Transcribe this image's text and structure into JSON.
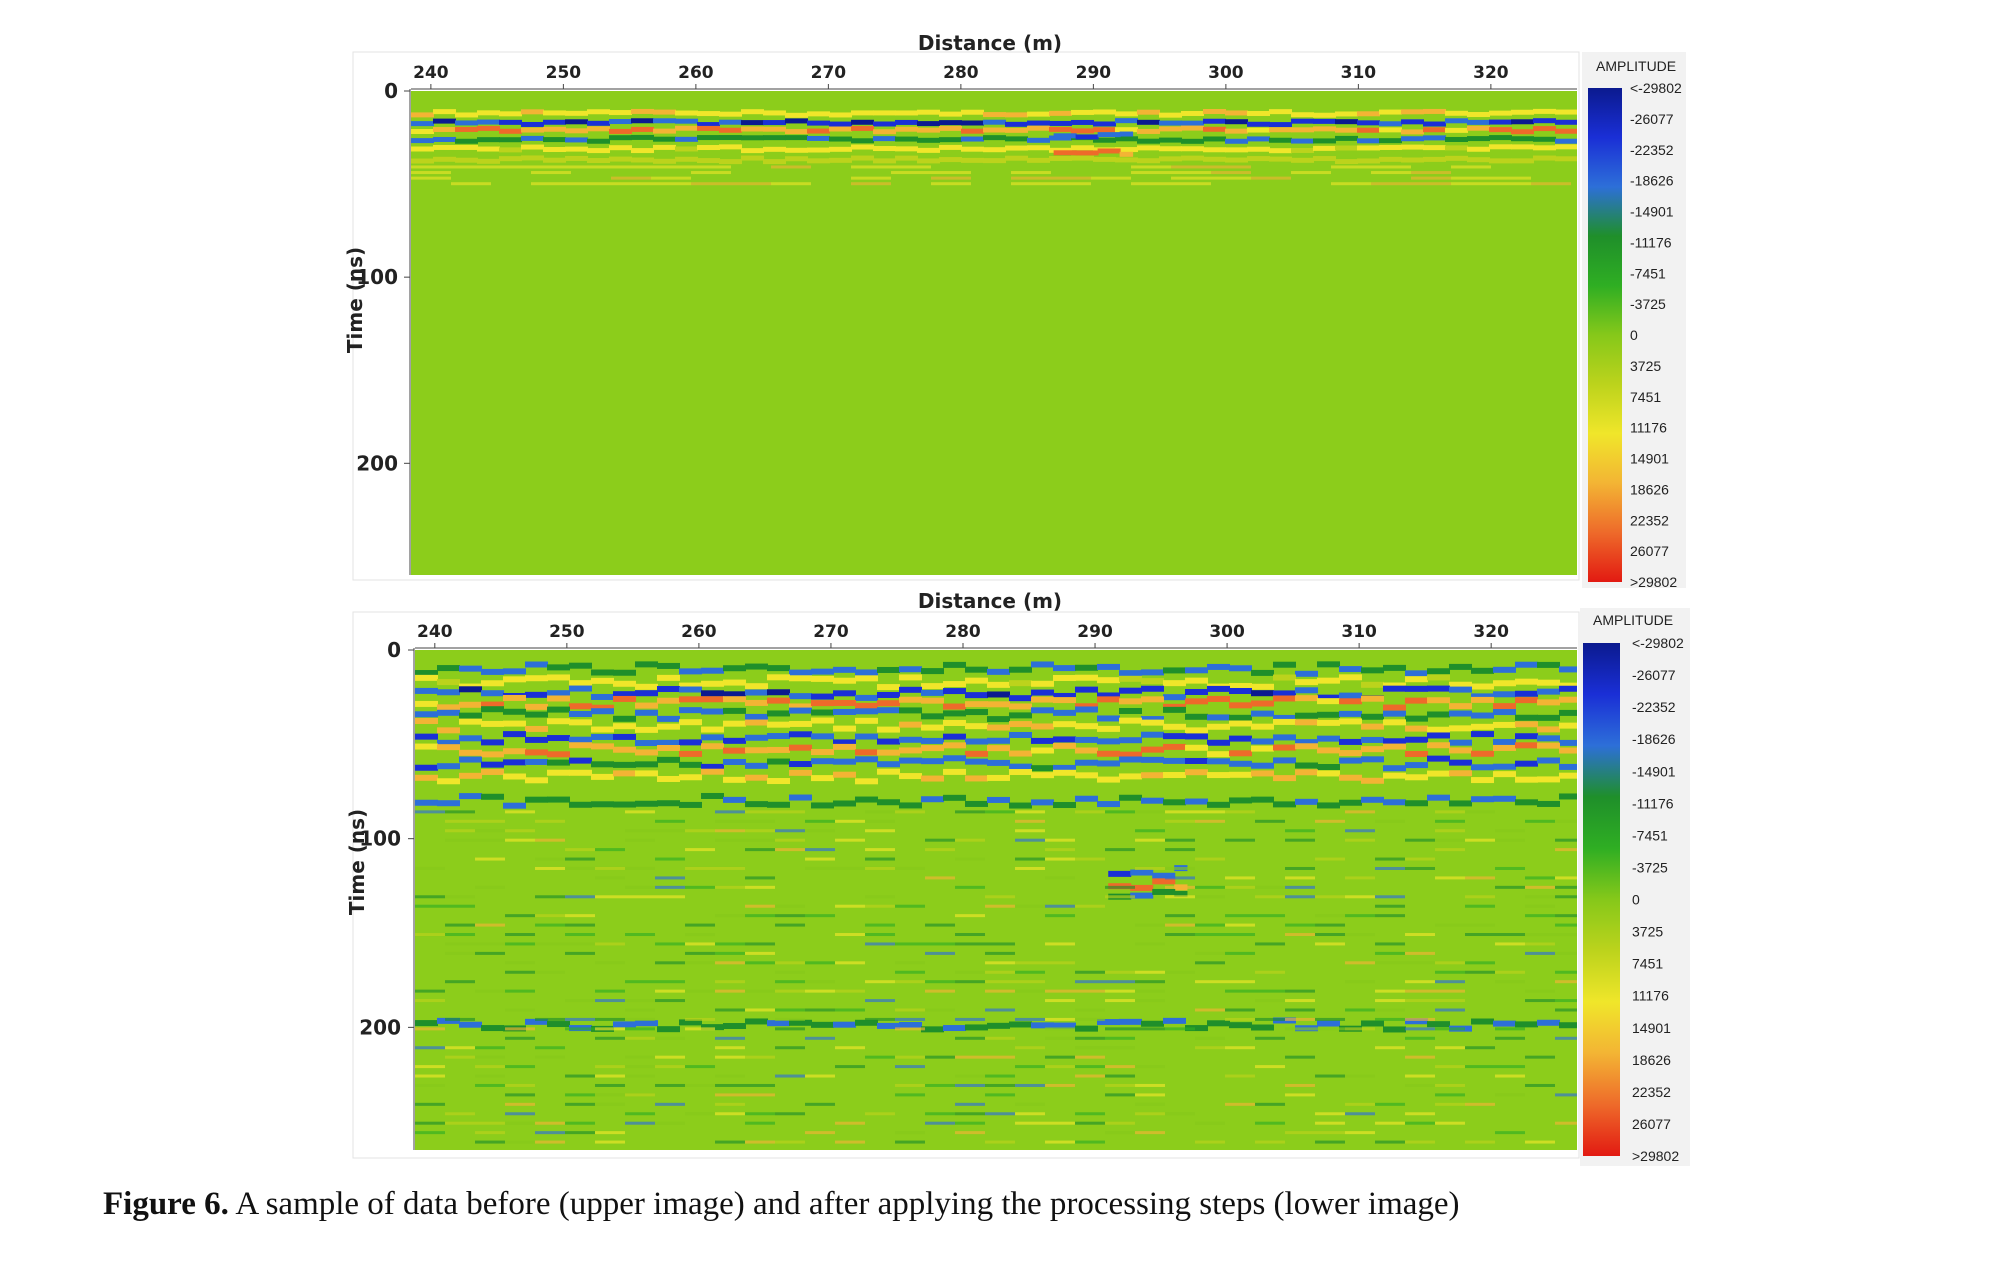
{
  "caption": {
    "label": "Figure 6.",
    "text": " A sample of data before (upper image) and after applying the processing steps (lower image)"
  },
  "colorbar_colors": [
    "#0b1a8f",
    "#1a2fd6",
    "#2d6fd8",
    "#1f8f2a",
    "#2fae23",
    "#86c81a",
    "#bcd31c",
    "#f0e62a",
    "#f3b434",
    "#ee6a2a",
    "#e21a12"
  ],
  "chart_data": [
    {
      "type": "heatmap",
      "name": "upper",
      "title": "",
      "xlabel": "Distance (m)",
      "ylabel": "Time (ns)",
      "x_ticks": [
        240,
        250,
        260,
        270,
        280,
        290,
        300,
        310,
        320
      ],
      "y_ticks": [
        0,
        100,
        200
      ],
      "xlim": [
        238.5,
        326.5
      ],
      "ylim": [
        260,
        0
      ],
      "colorbar": {
        "title": "AMPLITUDE",
        "labels": [
          "<-29802",
          "-26077",
          "-22352",
          "-18626",
          "-14901",
          "-11176",
          "-7451",
          "-3725",
          "0",
          "3725",
          "7451",
          "11176",
          "14901",
          "18626",
          "22352",
          "26077",
          ">29802"
        ]
      },
      "features": [
        {
          "t": 12,
          "amp": 0.55
        },
        {
          "t": 17,
          "amp": -1.0
        },
        {
          "t": 21,
          "amp": 0.85
        },
        {
          "t": 26,
          "amp": -0.6
        },
        {
          "t": 31,
          "amp": 0.5
        },
        {
          "t": 37,
          "amp": 0.3
        },
        {
          "x": 290,
          "t": 33,
          "amp": 0.9
        },
        {
          "x": 290,
          "t": 24,
          "amp": -0.9
        }
      ]
    },
    {
      "type": "heatmap",
      "name": "lower",
      "title": "",
      "xlabel": "Distance (m)",
      "ylabel": "Time (ns)",
      "x_ticks": [
        240,
        250,
        260,
        270,
        280,
        290,
        300,
        310,
        320
      ],
      "y_ticks": [
        0,
        100,
        200
      ],
      "xlim": [
        238.5,
        326.5
      ],
      "ylim": [
        265,
        0
      ],
      "colorbar": {
        "title": "AMPLITUDE",
        "labels": [
          "<-29802",
          "-26077",
          "-22352",
          "-18626",
          "-14901",
          "-11176",
          "-7451",
          "-3725",
          "0",
          "3725",
          "7451",
          "11176",
          "14901",
          "18626",
          "22352",
          "26077",
          ">29802"
        ]
      },
      "features": [
        {
          "t": 10,
          "amp": -0.7
        },
        {
          "t": 17,
          "amp": 0.5
        },
        {
          "t": 23,
          "amp": -1.0
        },
        {
          "t": 28,
          "amp": 0.9
        },
        {
          "t": 34,
          "amp": -0.6
        },
        {
          "t": 40,
          "amp": 0.55
        },
        {
          "t": 47,
          "amp": -0.9
        },
        {
          "t": 53,
          "amp": 0.85
        },
        {
          "t": 60,
          "amp": -0.8
        },
        {
          "t": 67,
          "amp": 0.6
        },
        {
          "t": 80,
          "amp": -0.6
        },
        {
          "x": 294,
          "t": 118,
          "amp": -0.9
        },
        {
          "x": 294,
          "t": 124,
          "amp": 0.8
        },
        {
          "x": 294,
          "t": 130,
          "amp": -0.7
        },
        {
          "t": 199,
          "amp": -0.6
        }
      ]
    }
  ]
}
